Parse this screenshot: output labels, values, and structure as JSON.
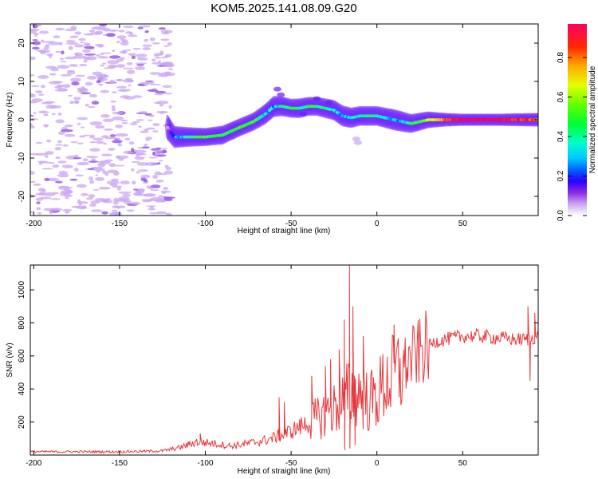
{
  "chart_data": [
    {
      "type": "heatmap",
      "title": "KOM5.2025.141.08.09.G20",
      "xlabel": "Height of straight line (km)",
      "ylabel": "Frequency (Hz)",
      "xlim": [
        -202,
        94
      ],
      "ylim": [
        -25,
        25
      ],
      "x_ticks": [
        "-200",
        "-150",
        "-100",
        "-50",
        "0",
        "50"
      ],
      "y_ticks": [
        "-20",
        "-10",
        "0",
        "10",
        "20"
      ],
      "colorbar": {
        "label": "Normalized spectral amplitude",
        "range": [
          0,
          0.97
        ],
        "ticks": [
          "0.0",
          "0.2",
          "0.4",
          "0.6",
          "0.8"
        ],
        "colors": [
          "#ffffff",
          "#c9a6f2",
          "#8a2be2",
          "#2a00ff",
          "#0064ff",
          "#00ffff",
          "#00ff64",
          "#32ff00",
          "#c8ff00",
          "#ffff00",
          "#ff9600",
          "#ff0000",
          "#ff0064"
        ]
      },
      "ridge": {
        "x": [
          -122,
          -118,
          -110,
          -100,
          -90,
          -80,
          -72,
          -65,
          -60,
          -55,
          -50,
          -45,
          -40,
          -35,
          -30,
          -25,
          -20,
          -15,
          -10,
          -5,
          0,
          5,
          10,
          15,
          20,
          25,
          30,
          40,
          50,
          60,
          70,
          80,
          94
        ],
        "freq": [
          -2,
          -4.5,
          -4.5,
          -4.5,
          -4,
          -2,
          -0.5,
          1.5,
          3.5,
          3.5,
          3,
          3,
          3.5,
          3.5,
          3,
          2.5,
          1,
          0.5,
          1,
          1,
          1,
          0.5,
          0,
          -0.5,
          -1,
          -0.5,
          0,
          0,
          0,
          0,
          0,
          0,
          0
        ],
        "amplitude": [
          0.1,
          0.3,
          0.45,
          0.55,
          0.5,
          0.55,
          0.55,
          0.4,
          0.35,
          0.45,
          0.5,
          0.45,
          0.5,
          0.5,
          0.45,
          0.4,
          0.35,
          0.4,
          0.45,
          0.45,
          0.45,
          0.4,
          0.35,
          0.4,
          0.5,
          0.55,
          0.65,
          0.85,
          0.95,
          0.95,
          0.95,
          0.9,
          0.85
        ]
      },
      "noise_region_x": [
        -202,
        -120
      ]
    },
    {
      "type": "line",
      "xlabel": "Height of straight line (km)",
      "ylabel": "SNR (v/v)",
      "xlim": [
        -202,
        94
      ],
      "ylim": [
        0,
        1150
      ],
      "x_ticks": [
        "-200",
        "-150",
        "-100",
        "-50",
        "0",
        "50"
      ],
      "y_ticks": [
        "200",
        "400",
        "600",
        "800",
        "1000"
      ],
      "color": "#e8383c",
      "envelope": {
        "x": [
          -202,
          -150,
          -125,
          -115,
          -105,
          -95,
          -85,
          -75,
          -65,
          -55,
          -45,
          -35,
          -25,
          -20,
          -15,
          -10,
          -5,
          0,
          5,
          10,
          15,
          20,
          25,
          30,
          35,
          40,
          50,
          60,
          70,
          80,
          88,
          94
        ],
        "y": [
          20,
          20,
          25,
          45,
          80,
          70,
          55,
          70,
          90,
          120,
          170,
          220,
          280,
          330,
          380,
          380,
          320,
          350,
          440,
          470,
          530,
          580,
          620,
          660,
          690,
          700,
          720,
          720,
          710,
          700,
          700,
          720
        ]
      },
      "spikes": [
        {
          "x": -103,
          "y": 130
        },
        {
          "x": -57,
          "y": 350
        },
        {
          "x": -54,
          "y": 320
        },
        {
          "x": -38,
          "y": 480
        },
        {
          "x": -30,
          "y": 540
        },
        {
          "x": -27,
          "y": 580
        },
        {
          "x": -22,
          "y": 640
        },
        {
          "x": -19,
          "y": 820
        },
        {
          "x": -16,
          "y": 1150
        },
        {
          "x": -14,
          "y": 900
        },
        {
          "x": -8,
          "y": 720
        },
        {
          "x": 10,
          "y": 790
        },
        {
          "x": 88,
          "y": 900
        },
        {
          "x": 92,
          "y": 860
        }
      ],
      "dips": [
        {
          "x": -19,
          "y": 30
        },
        {
          "x": -16,
          "y": 40
        },
        {
          "x": -13,
          "y": 60
        },
        {
          "x": 89,
          "y": 450
        }
      ]
    }
  ]
}
